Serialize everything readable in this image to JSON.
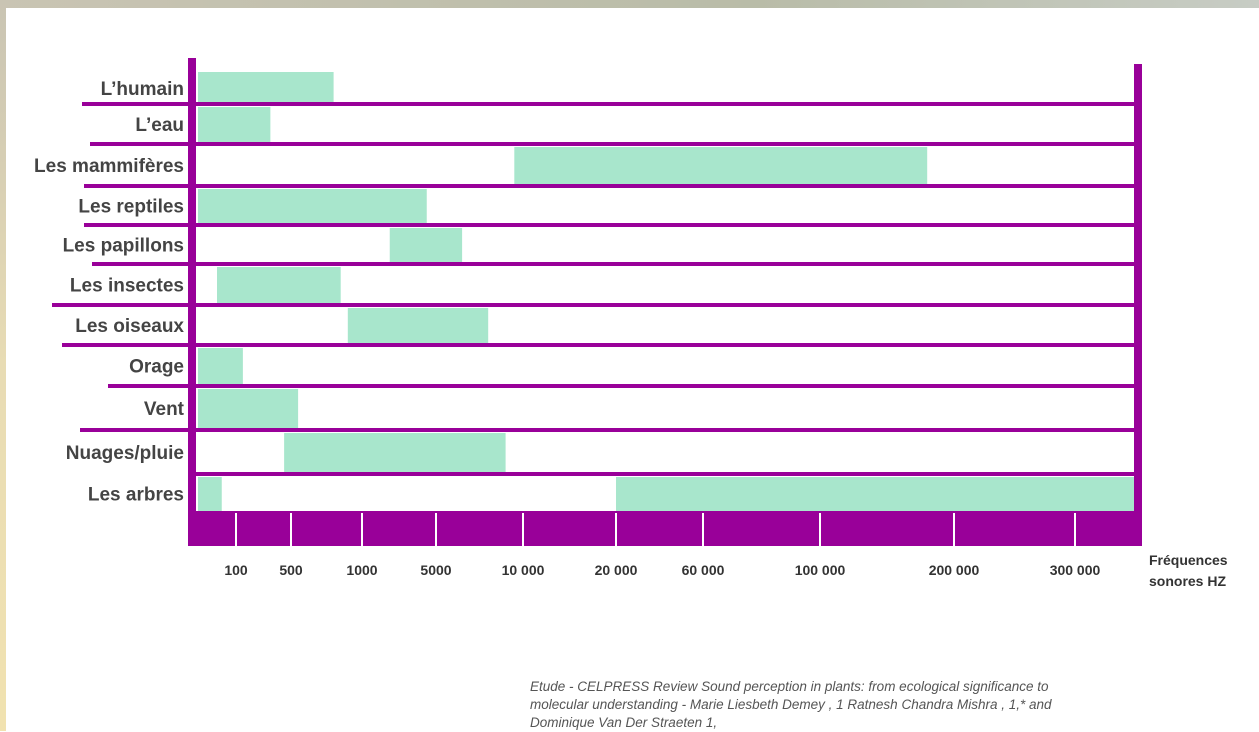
{
  "colors": {
    "frame": "#990099",
    "range": "#a8e6cc",
    "background": "#ffffff"
  },
  "chart_data": {
    "type": "range-bar",
    "categories": [
      "L’humain",
      "L’eau",
      "Les mammifères",
      "Les reptiles",
      "Les papillons",
      "Les insectes",
      "Les oiseaux",
      "Orage",
      "Vent",
      "Nuages/pluie",
      "Les arbres"
    ],
    "x_ticks": [
      100,
      500,
      1000,
      5000,
      10000,
      20000,
      60000,
      100000,
      200000,
      300000
    ],
    "x_tick_labels": [
      "100",
      "500",
      "1000",
      "5000",
      "10 000",
      "20 000",
      "60 000",
      "100 000",
      "200 000",
      "300 000"
    ],
    "series": [
      {
        "ranges": [
          [
            [
              20,
              800
            ]
          ],
          [
            [
              20,
              350
            ]
          ],
          [
            [
              9500,
              180000
            ]
          ],
          [
            [
              20,
              4500
            ]
          ],
          [
            [
              2500,
              6500
            ]
          ],
          [
            [
              60,
              850
            ]
          ],
          [
            [
              900,
              8000
            ]
          ],
          [
            [
              20,
              150
            ]
          ],
          [
            [
              20,
              550
            ]
          ],
          [
            [
              450,
              9000
            ]
          ],
          [
            [
              20,
              70
            ],
            [
              20000,
              330000
            ]
          ]
        ]
      }
    ],
    "xlabel": [
      "Fréquences",
      "sonores HZ"
    ]
  },
  "source": {
    "lines": [
      "Etude - CELPRESS Review Sound perception in plants: from ecological significance to",
      "molecular understanding - Marie Liesbeth Demey , 1 Ratnesh Chandra Mishra , 1,* and",
      "Dominique Van Der Straeten 1,"
    ]
  }
}
